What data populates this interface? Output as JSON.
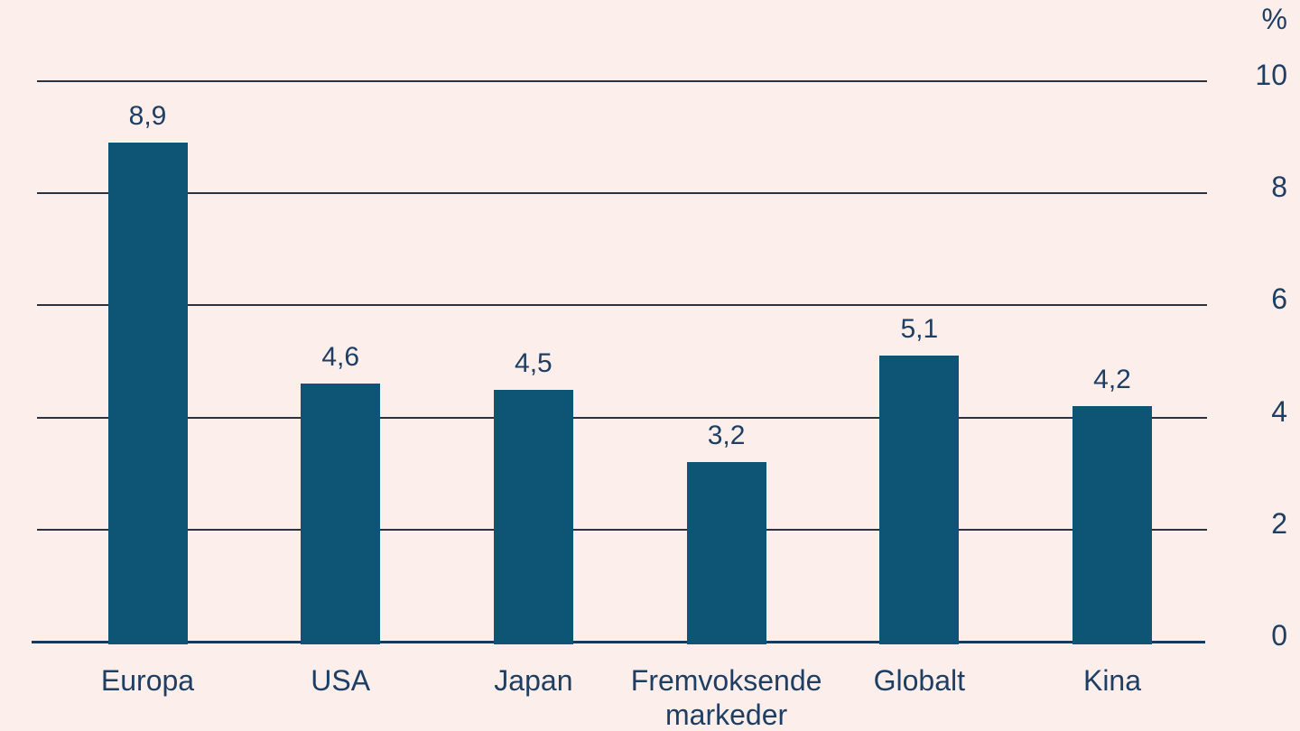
{
  "chart_data": {
    "type": "bar",
    "categories": [
      "Europa",
      "USA",
      "Japan",
      "Fremvoksende markeder",
      "Globalt",
      "Kina"
    ],
    "values": [
      8.9,
      4.6,
      4.5,
      3.2,
      5.1,
      4.2
    ],
    "value_labels": [
      "8,9",
      "4,6",
      "4,5",
      "3,2",
      "5,1",
      "4,2"
    ],
    "title": "",
    "xlabel": "",
    "ylabel": "%",
    "unit_label": "%",
    "y_ticks": [
      0,
      2,
      4,
      6,
      8,
      10
    ],
    "ylim": [
      0,
      10
    ],
    "grid": true,
    "legend": "none",
    "y_axis_position": "right",
    "decimal_separator": ",",
    "colors": {
      "background": "#fceeea",
      "bar": "#0e5475",
      "text": "#1e3e63",
      "gridline": "#2a3140",
      "baseline": "#16395f"
    }
  }
}
